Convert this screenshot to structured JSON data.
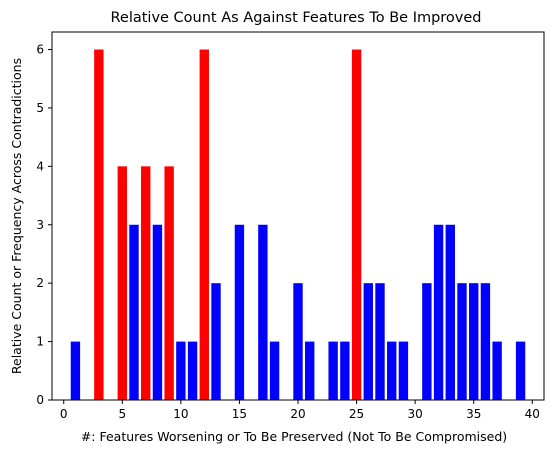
{
  "chart_data": {
    "type": "bar",
    "title": "Relative Count As Against Features To Be Improved",
    "xlabel": "#: Features Worsening or To Be Preserved (Not To Be Compromised)",
    "ylabel": "Relative Count or Frequency Across Contradictions",
    "xlim": [
      -1,
      41
    ],
    "ylim": [
      0,
      6.3
    ],
    "xticks": [
      0,
      5,
      10,
      15,
      20,
      25,
      30,
      35,
      40
    ],
    "yticks": [
      0,
      1,
      2,
      3,
      4,
      5,
      6
    ],
    "grid": false,
    "colors": {
      "highlight": "#ff0000",
      "normal": "#0000ff"
    },
    "bars": [
      {
        "x": 1,
        "value": 1,
        "color": "blue"
      },
      {
        "x": 3,
        "value": 6,
        "color": "red"
      },
      {
        "x": 5,
        "value": 4,
        "color": "red"
      },
      {
        "x": 6,
        "value": 3,
        "color": "blue"
      },
      {
        "x": 7,
        "value": 4,
        "color": "red"
      },
      {
        "x": 8,
        "value": 3,
        "color": "blue"
      },
      {
        "x": 9,
        "value": 4,
        "color": "red"
      },
      {
        "x": 10,
        "value": 1,
        "color": "blue"
      },
      {
        "x": 11,
        "value": 1,
        "color": "blue"
      },
      {
        "x": 12,
        "value": 6,
        "color": "red"
      },
      {
        "x": 13,
        "value": 2,
        "color": "blue"
      },
      {
        "x": 15,
        "value": 3,
        "color": "blue"
      },
      {
        "x": 17,
        "value": 3,
        "color": "blue"
      },
      {
        "x": 18,
        "value": 1,
        "color": "blue"
      },
      {
        "x": 20,
        "value": 2,
        "color": "blue"
      },
      {
        "x": 21,
        "value": 1,
        "color": "blue"
      },
      {
        "x": 23,
        "value": 1,
        "color": "blue"
      },
      {
        "x": 24,
        "value": 1,
        "color": "blue"
      },
      {
        "x": 25,
        "value": 6,
        "color": "red"
      },
      {
        "x": 26,
        "value": 2,
        "color": "blue"
      },
      {
        "x": 27,
        "value": 2,
        "color": "blue"
      },
      {
        "x": 28,
        "value": 1,
        "color": "blue"
      },
      {
        "x": 29,
        "value": 1,
        "color": "blue"
      },
      {
        "x": 31,
        "value": 2,
        "color": "blue"
      },
      {
        "x": 32,
        "value": 3,
        "color": "blue"
      },
      {
        "x": 33,
        "value": 3,
        "color": "blue"
      },
      {
        "x": 34,
        "value": 2,
        "color": "blue"
      },
      {
        "x": 35,
        "value": 2,
        "color": "blue"
      },
      {
        "x": 36,
        "value": 2,
        "color": "blue"
      },
      {
        "x": 37,
        "value": 1,
        "color": "blue"
      },
      {
        "x": 39,
        "value": 1,
        "color": "blue"
      }
    ]
  }
}
